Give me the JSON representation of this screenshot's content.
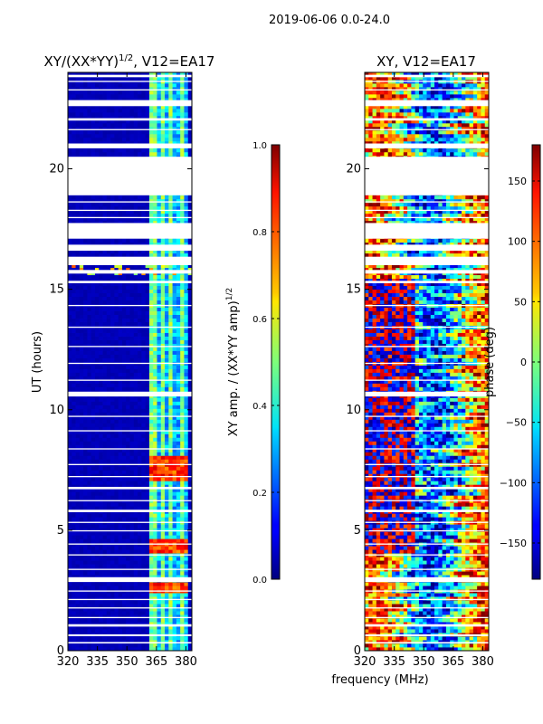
{
  "suptitle": "2019-06-06 0.0-24.0",
  "chart_data": [
    {
      "type": "heatmap",
      "title": "XY/(XX*YY)^{1/2}, V12=EA17",
      "title_main": "XY/(XX*YY)",
      "title_sup": "1/2",
      "title_tail": ", V12=EA17",
      "xlabel": "",
      "ylabel": "UT (hours)",
      "xlim": [
        320,
        383
      ],
      "ylim": [
        0,
        24
      ],
      "xticks": [
        320,
        335,
        350,
        365,
        380
      ],
      "yticks": [
        0,
        5,
        10,
        15,
        20
      ],
      "colormap": "jet",
      "data_notes": "Background amplitude ~0.05 (dark blue); bright channels near 361-380 MHz ~0.3-0.6; RFI spikes ~0.7-0.9 at 2.5, 4.0-4.5 and 7.0-8.0 hours."
    },
    {
      "type": "heatmap",
      "title": "XY, V12=EA17",
      "xlabel": "frequency (MHz)",
      "ylabel": "",
      "xlim": [
        320,
        383
      ],
      "ylim": [
        0,
        24
      ],
      "xticks": [
        320,
        335,
        350,
        365,
        380
      ],
      "yticks": [
        0,
        5,
        10,
        15,
        20
      ],
      "colormap": "jet",
      "data_notes": "Phase values spanning -180 to 180 degrees; noisy, band-structured across frequency."
    }
  ],
  "colorbars": [
    {
      "label": "XY amp. / (XX*YY amp)^{1/2}",
      "label_main": "XY amp. / (XX*YY amp)",
      "label_sup": "1/2",
      "range": [
        0.0,
        1.0
      ],
      "ticks": [
        "0.0",
        "0.2",
        "0.4",
        "0.6",
        "0.8",
        "1.0"
      ]
    },
    {
      "label": "phase (deg)",
      "range": [
        -180,
        180
      ],
      "ticks": [
        "−150",
        "−100",
        "−50",
        "0",
        "50",
        "100",
        "150"
      ],
      "tick_values": [
        -150,
        -100,
        -50,
        0,
        50,
        100,
        150
      ]
    }
  ],
  "gaps": [
    [
      0.3,
      0.36
    ],
    [
      0.6,
      0.68
    ],
    [
      1.0,
      1.1
    ],
    [
      1.35,
      1.4
    ],
    [
      1.75,
      1.8
    ],
    [
      2.1,
      2.15
    ],
    [
      2.45,
      2.5
    ],
    [
      2.85,
      3.05
    ],
    [
      3.35,
      3.4
    ],
    [
      3.95,
      4.0
    ],
    [
      4.4,
      4.45
    ],
    [
      4.95,
      5.0
    ],
    [
      5.3,
      5.35
    ],
    [
      5.75,
      5.85
    ],
    [
      6.2,
      6.25
    ],
    [
      6.7,
      6.8
    ],
    [
      7.2,
      7.25
    ],
    [
      7.7,
      7.75
    ],
    [
      8.35,
      8.4
    ],
    [
      9.1,
      9.15
    ],
    [
      9.7,
      9.75
    ],
    [
      10.55,
      10.75
    ],
    [
      11.2,
      11.25
    ],
    [
      11.9,
      11.95
    ],
    [
      12.6,
      12.65
    ],
    [
      13.4,
      13.45
    ],
    [
      14.3,
      14.35
    ],
    [
      15.25,
      15.35
    ],
    [
      15.65,
      15.8
    ],
    [
      16.0,
      16.35
    ],
    [
      16.6,
      16.85
    ],
    [
      17.1,
      17.75
    ],
    [
      17.95,
      18.0
    ],
    [
      18.25,
      18.3
    ],
    [
      18.6,
      18.65
    ],
    [
      18.9,
      20.5
    ],
    [
      20.85,
      21.05
    ],
    [
      21.6,
      21.65
    ],
    [
      22.0,
      22.1
    ],
    [
      22.6,
      22.85
    ],
    [
      23.25,
      23.3
    ],
    [
      23.6,
      23.65
    ],
    [
      23.8,
      23.9
    ]
  ]
}
